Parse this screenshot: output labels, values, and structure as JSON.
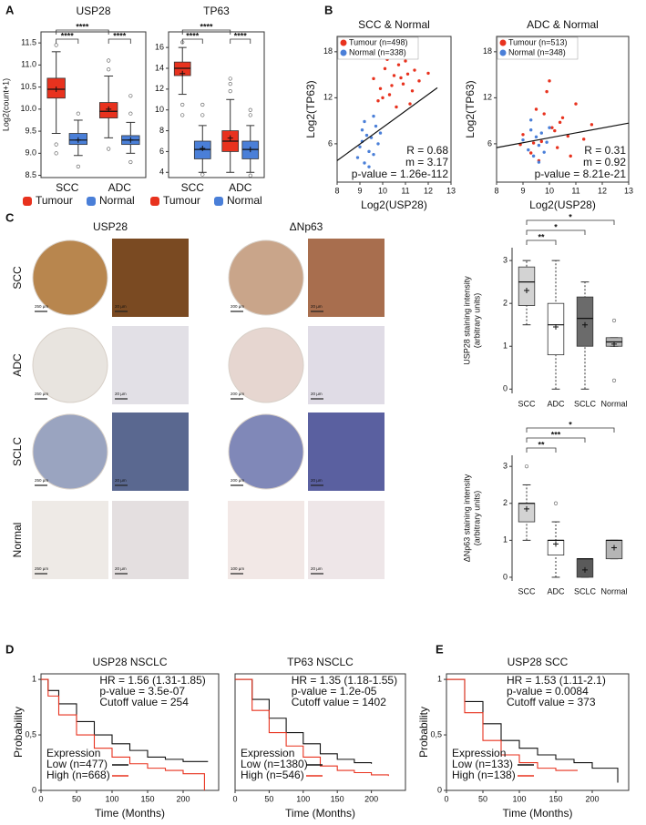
{
  "panel_labels": [
    "A",
    "B",
    "C",
    "D",
    "E"
  ],
  "micrographs": {
    "columns": [
      "USP28",
      "ΔNp63"
    ],
    "rows": [
      "SCC",
      "ADC",
      "SCLC",
      "Normal"
    ],
    "scale_bars": [
      [
        "250 µm",
        "20 µm",
        "200 µm",
        "20 µm"
      ],
      [
        "250 µm",
        "20 µm",
        "200 µm",
        "20 µm"
      ],
      [
        "250 µm",
        "20 µm",
        "200 µm",
        "20 µm"
      ],
      [
        "250 µm",
        "20 µm",
        "100 µm",
        "20 µm"
      ]
    ]
  },
  "chart_data": [
    {
      "type": "box",
      "title": "USP28",
      "y_label": [
        "Log2(count+1)"
      ],
      "categories": [
        "SCC",
        "ADC"
      ],
      "ylim": [
        8.45,
        11.75
      ],
      "yticks": [
        8.5,
        {
          "value": 9,
          "label": "9.0"
        },
        9.5,
        {
          "value": 10,
          "label": "10.0"
        },
        10.5,
        {
          "value": 11,
          "label": "11.0"
        },
        11.5
      ],
      "significance": [
        "****",
        "****",
        "****"
      ],
      "series": [
        {
          "name": "Tumour",
          "color": "#e8321e",
          "q1": [
            10.25,
            9.8
          ],
          "median": [
            10.45,
            9.95
          ],
          "q3": [
            10.7,
            10.15
          ],
          "whisker_low": [
            9.45,
            9.35
          ],
          "whisker_high": [
            11.3,
            10.75
          ],
          "mean": [
            10.45,
            10.0
          ],
          "outliers": [
            [
              9.2,
              9.0,
              11.45
            ],
            [
              9.1,
              10.9,
              11.1
            ]
          ]
        },
        {
          "name": "Normal",
          "color": "#4a7fd8",
          "q1": [
            9.2,
            9.2
          ],
          "median": [
            9.3,
            9.3
          ],
          "q3": [
            9.45,
            9.4
          ],
          "whisker_low": [
            8.95,
            9.0
          ],
          "whisker_high": [
            9.75,
            9.7
          ],
          "mean": [
            9.3,
            9.3
          ],
          "outliers": [
            [
              8.7,
              9.9
            ],
            [
              8.8,
              9.9,
              10.3
            ]
          ]
        }
      ]
    },
    {
      "type": "box",
      "title": "TP63",
      "categories": [
        "SCC",
        "ADC"
      ],
      "ylim": [
        3.5,
        17.5
      ],
      "yticks": [
        4,
        6,
        8,
        10,
        12,
        14,
        16
      ],
      "significance": [
        "****",
        "****",
        "****"
      ],
      "series": [
        {
          "name": "Tumour",
          "color": "#e8321e",
          "q1": [
            13.3,
            6.0
          ],
          "median": [
            14.0,
            7.0
          ],
          "q3": [
            14.6,
            8.0
          ],
          "whisker_low": [
            11.5,
            4.0
          ],
          "whisker_high": [
            16.0,
            11.0
          ],
          "mean": [
            13.5,
            7.3
          ],
          "outliers": [
            [
              10.5,
              9.5,
              16.5
            ],
            [
              11.8,
              12.5,
              13
            ]
          ]
        },
        {
          "name": "Normal",
          "color": "#4a7fd8",
          "q1": [
            5.3,
            5.3
          ],
          "median": [
            6.2,
            6.2
          ],
          "q3": [
            7.0,
            7.0
          ],
          "whisker_low": [
            4.0,
            4.0
          ],
          "whisker_high": [
            8.5,
            8.5
          ],
          "mean": [
            6.3,
            6.2
          ],
          "outliers": [
            [
              9.5,
              10.5,
              3.8
            ],
            [
              9.5,
              10,
              3.7
            ]
          ]
        }
      ]
    },
    {
      "type": "scatter",
      "title": "SCC & Normal",
      "x_label": "Log2(USP28)",
      "y_label": [
        "Log2(TP63)"
      ],
      "xlim": [
        8,
        13
      ],
      "xticks": [
        8,
        9,
        10,
        11,
        12,
        13
      ],
      "ylim": [
        1,
        20
      ],
      "yticks": [
        6,
        12,
        18
      ],
      "stats": [
        "R = 0.68",
        "m = 3.17",
        "p-value = 1.26e-112"
      ],
      "fit_line": {
        "x": [
          8,
          12.4
        ],
        "y": [
          3.8,
          13.3
        ]
      },
      "series": [
        {
          "name": "Tumour (n=498)",
          "color": "#e8321e",
          "x": [
            9.6,
            9.9,
            10.1,
            10.3,
            10.5,
            10.7,
            10.9,
            11.1,
            11.3,
            11.6,
            9.8,
            10.2,
            10.6,
            11.0,
            11.4,
            10.0,
            10.4,
            10.8,
            11.2,
            12.0
          ],
          "values": [
            14.5,
            13.2,
            15.8,
            12.4,
            14.9,
            16.3,
            13.8,
            15.1,
            12.9,
            14.2,
            11.6,
            17.0,
            10.8,
            16.8,
            15.6,
            12.0,
            13.6,
            14.6,
            11.2,
            15.2
          ]
        },
        {
          "name": "Normal (n=338)",
          "color": "#4a7fd8",
          "x": [
            8.9,
            9.0,
            9.1,
            9.2,
            9.3,
            9.4,
            9.5,
            9.6,
            9.7,
            9.8,
            9.2,
            9.4,
            9.6,
            9.9,
            9.1
          ],
          "values": [
            4.2,
            5.6,
            6.3,
            3.5,
            7.1,
            5.0,
            6.8,
            4.6,
            8.3,
            6.0,
            8.9,
            3.0,
            9.6,
            7.4,
            7.8
          ]
        }
      ]
    },
    {
      "type": "scatter",
      "title": "ADC & Normal",
      "x_label": "Log2(USP28)",
      "y_label": [
        "Log2(TP63)"
      ],
      "xlim": [
        8,
        13
      ],
      "xticks": [
        8,
        9,
        10,
        11,
        12,
        13
      ],
      "ylim": [
        1,
        20
      ],
      "yticks": [
        6,
        12,
        18
      ],
      "stats": [
        "R = 0.31",
        "m = 0.92",
        "p-value = 8.21e-21"
      ],
      "fit_line": {
        "x": [
          8,
          13
        ],
        "y": [
          5.5,
          8.7
        ]
      },
      "series": [
        {
          "name": "Tumour (n=513)",
          "color": "#e8321e",
          "x": [
            9.0,
            9.3,
            9.5,
            9.7,
            9.9,
            10.1,
            10.3,
            10.5,
            10.7,
            11.0,
            11.3,
            9.6,
            10.0,
            10.4,
            9.4,
            10.8,
            9.8,
            10.2,
            11.6,
            8.9
          ],
          "values": [
            7.2,
            4.8,
            10.5,
            6.3,
            12.8,
            8.1,
            5.5,
            9.4,
            7.0,
            11.2,
            6.6,
            3.8,
            14.2,
            8.8,
            6.1,
            4.4,
            9.9,
            7.7,
            8.5,
            5.9
          ]
        },
        {
          "name": "Normal (n=348)",
          "color": "#4a7fd8",
          "x": [
            9.0,
            9.2,
            9.3,
            9.4,
            9.5,
            9.6,
            9.7,
            9.8,
            9.9,
            10.0,
            9.3,
            9.6
          ],
          "values": [
            6.5,
            5.2,
            7.8,
            4.4,
            6.9,
            5.8,
            7.4,
            4.9,
            6.2,
            8.1,
            9.1,
            3.6
          ]
        }
      ]
    },
    {
      "type": "box",
      "y_label": [
        "USP28 staining intensity",
        "(arbitrary units)"
      ],
      "categories": [
        "SCC",
        "ADC",
        "SCLC",
        "Normal"
      ],
      "ylim": [
        -0.1,
        3.3
      ],
      "yticks": [
        0,
        1,
        2,
        3
      ],
      "significance": [
        "**",
        "*",
        "*"
      ],
      "series": [
        {
          "colors": [
            "#d3d3d3",
            "#ffffff",
            "#6b6b6b",
            "#b5b5b5"
          ],
          "q1": [
            1.95,
            0.8,
            1.0,
            1.0
          ],
          "median": [
            2.5,
            1.5,
            1.65,
            1.1
          ],
          "q3": [
            2.85,
            2.0,
            2.15,
            1.2
          ],
          "whisker_low": [
            1.5,
            0,
            0,
            1.0
          ],
          "whisker_high": [
            3.0,
            3.0,
            2.5,
            1.2
          ],
          "mean": [
            2.3,
            1.45,
            1.5,
            1.05
          ],
          "outliers": [
            [],
            [],
            [],
            [
              1.6,
              0.2
            ]
          ]
        }
      ]
    },
    {
      "type": "box",
      "y_label": [
        "ΔNp63 staining intensity",
        "(arbitrary units)"
      ],
      "categories": [
        "SCC",
        "ADC",
        "SCLC",
        "Normal"
      ],
      "ylim": [
        -0.1,
        3.3
      ],
      "yticks": [
        0,
        1,
        2,
        3
      ],
      "significance": [
        "**",
        "***",
        "*"
      ],
      "series": [
        {
          "colors": [
            "#d3d3d3",
            "#ffffff",
            "#5a5a5a",
            "#b5b5b5"
          ],
          "q1": [
            1.5,
            0.6,
            0,
            0.5
          ],
          "median": [
            2.0,
            1.0,
            0.5,
            1.0
          ],
          "q3": [
            2.0,
            1.0,
            0.5,
            1.0
          ],
          "whisker_low": [
            1.0,
            0,
            0,
            0.5
          ],
          "whisker_high": [
            2.5,
            1.5,
            0.5,
            1.0
          ],
          "mean": [
            1.85,
            0.9,
            0.2,
            0.8
          ],
          "outliers": [
            [
              3
            ],
            [
              2
            ],
            [],
            []
          ]
        }
      ]
    },
    {
      "type": "line",
      "step": true,
      "title": "USP28 NSCLC",
      "x_label": "Time (Months)",
      "y_label": [
        "Probability"
      ],
      "xlim": [
        0,
        250
      ],
      "xticks": [
        0,
        50,
        100,
        150,
        200
      ],
      "ylim": [
        0,
        1.05
      ],
      "yticks": [
        0,
        {
          "value": 0.5,
          "label": "0,5"
        },
        1
      ],
      "stats": [
        "HR = 1.56 (1.31-1.85)",
        "p-value = 3.5e-07",
        "Cutoff value = 254"
      ],
      "legend_title": "Expression",
      "series": [
        {
          "name": "Low (n=477)",
          "color": "#111111",
          "x": [
            0,
            10,
            25,
            50,
            75,
            100,
            125,
            150,
            175,
            200,
            235
          ],
          "values": [
            1,
            0.9,
            0.78,
            0.62,
            0.5,
            0.42,
            0.36,
            0.3,
            0.28,
            0.26,
            0.26
          ]
        },
        {
          "name": "High (n=668)",
          "color": "#e8321e",
          "x": [
            0,
            10,
            25,
            50,
            75,
            100,
            125,
            150,
            175,
            200,
            225,
            230
          ],
          "values": [
            1,
            0.85,
            0.68,
            0.5,
            0.38,
            0.3,
            0.24,
            0.2,
            0.18,
            0.15,
            0.15,
            0
          ]
        }
      ]
    },
    {
      "type": "line",
      "step": true,
      "title": "TP63 NSCLC",
      "x_label": "Time (Months)",
      "xlim": [
        0,
        250
      ],
      "xticks": [
        0,
        50,
        100,
        150,
        200
      ],
      "ylim": [
        0,
        1.05
      ],
      "stats": [
        "HR = 1.35 (1.18-1.55)",
        "p-value = 1.2e-05",
        "Cutoff value = 1402"
      ],
      "legend_title": "Expression",
      "series": [
        {
          "name": "Low (n=1380)",
          "color": "#111111",
          "x": [
            0,
            25,
            50,
            75,
            100,
            125,
            150,
            175,
            200
          ],
          "values": [
            1,
            0.82,
            0.65,
            0.52,
            0.42,
            0.33,
            0.28,
            0.25,
            0.24
          ]
        },
        {
          "name": "High (n=546)",
          "color": "#e8321e",
          "x": [
            0,
            25,
            50,
            75,
            100,
            125,
            150,
            175,
            200,
            225
          ],
          "values": [
            1,
            0.72,
            0.52,
            0.4,
            0.3,
            0.22,
            0.18,
            0.16,
            0.14,
            0.13
          ]
        }
      ]
    },
    {
      "type": "line",
      "step": true,
      "title": "USP28 SCC",
      "x_label": "Time (Months)",
      "y_label": [
        "Probability"
      ],
      "xlim": [
        0,
        250
      ],
      "xticks": [
        0,
        50,
        100,
        150,
        200
      ],
      "ylim": [
        0,
        1.05
      ],
      "yticks": [
        0,
        {
          "value": 0.5,
          "label": "0,5"
        },
        1
      ],
      "stats": [
        "HR = 1.53 (1.11-2.1)",
        "p-value = 0.0084",
        "Cutoff value = 373"
      ],
      "legend_title": "Expression",
      "series": [
        {
          "name": "Low (n=133)",
          "color": "#111111",
          "x": [
            0,
            25,
            50,
            75,
            100,
            125,
            150,
            175,
            200,
            225,
            235
          ],
          "values": [
            1,
            0.8,
            0.6,
            0.45,
            0.38,
            0.32,
            0.28,
            0.25,
            0.2,
            0.2,
            0.07
          ]
        },
        {
          "name": "High (n=138)",
          "color": "#e8321e",
          "x": [
            0,
            25,
            50,
            75,
            100,
            125,
            150,
            180
          ],
          "values": [
            1,
            0.7,
            0.45,
            0.32,
            0.25,
            0.2,
            0.18,
            0.18
          ]
        }
      ]
    }
  ]
}
